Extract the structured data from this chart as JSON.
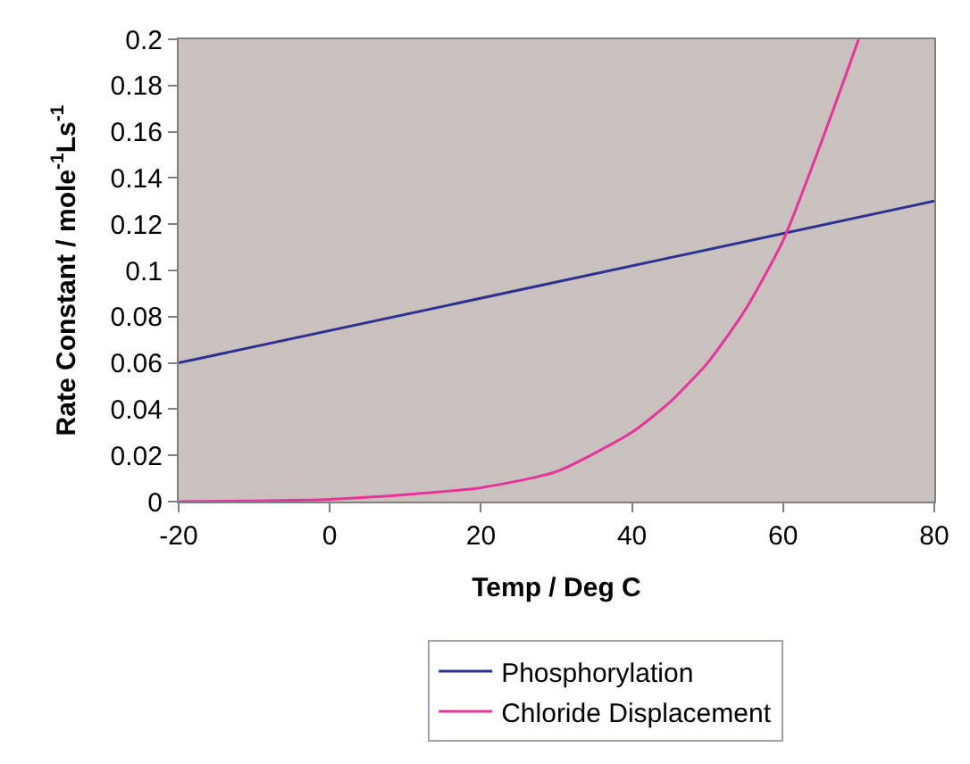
{
  "chart_data": {
    "type": "line",
    "xlabel": "Temp / Deg C",
    "ylabel": "Rate Constant / mole$^{-1}$Ls$^{-1}$",
    "xlim": [
      -20,
      80
    ],
    "xticks": [
      -20,
      0,
      20,
      40,
      60,
      80
    ],
    "ylim": [
      0,
      0.2
    ],
    "yticks": [
      0,
      0.02,
      0.04,
      0.06,
      0.08,
      0.1,
      0.12,
      0.14,
      0.16,
      0.18,
      0.2
    ],
    "grid": false,
    "legend": "bottom",
    "marker": "none",
    "line_style": "solid",
    "series": [
      {
        "name": "Phosphorylation",
        "color": "#2e3192",
        "x": [
          -20,
          80
        ],
        "values": [
          0.06,
          0.13
        ]
      },
      {
        "name": "Chloride Displacement",
        "color": "#e7349b",
        "x": [
          -20,
          -10,
          0,
          10,
          20,
          30,
          40,
          45,
          50,
          55,
          60,
          65,
          70
        ],
        "values": [
          0.0,
          0.0003,
          0.001,
          0.003,
          0.006,
          0.013,
          0.03,
          0.043,
          0.06,
          0.083,
          0.113,
          0.155,
          0.2
        ]
      }
    ]
  }
}
